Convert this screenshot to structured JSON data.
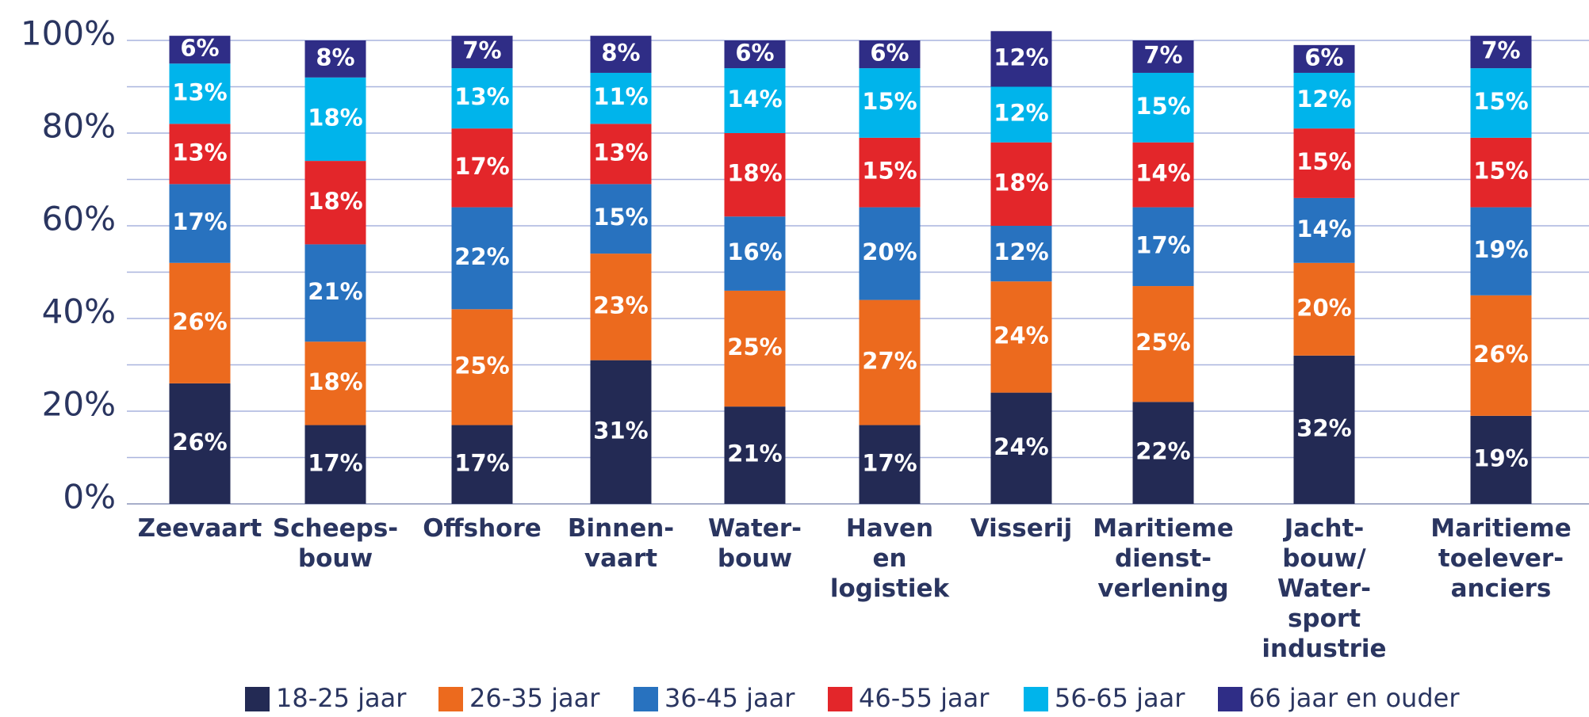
{
  "chart_data": {
    "type": "stacked_bar",
    "categories": [
      [
        "Zeevaart"
      ],
      [
        "Scheeps-",
        "bouw"
      ],
      [
        "Offshore"
      ],
      [
        "Binnen-",
        "vaart"
      ],
      [
        "Water-",
        "bouw"
      ],
      [
        "Haven",
        "en",
        "logistiek"
      ],
      [
        "Visserij"
      ],
      [
        "Maritieme",
        "dienst-",
        "verlening"
      ],
      [
        "Jacht-",
        "bouw/",
        "Water-",
        "sport",
        "industrie"
      ],
      [
        "Maritieme",
        "toelever-",
        "anciers"
      ]
    ],
    "series": [
      {
        "name": "18-25 jaar",
        "color": "#232a54",
        "values": [
          26,
          17,
          17,
          31,
          21,
          17,
          24,
          22,
          32,
          19
        ],
        "value_labels": [
          "26%",
          "17%",
          "17%",
          "31%",
          "21%",
          "17%",
          "24%",
          "22%",
          "32%",
          "19%"
        ]
      },
      {
        "name": "26-35 jaar",
        "color": "#ec6a1e",
        "values": [
          26,
          18,
          25,
          23,
          25,
          27,
          24,
          25,
          20,
          26
        ],
        "value_labels": [
          "26%",
          "18%",
          "25%",
          "23%",
          "25%",
          "27%",
          "24%",
          "25%",
          "20%",
          "26%"
        ]
      },
      {
        "name": "36-45 jaar",
        "color": "#2872bf",
        "values": [
          17,
          21,
          22,
          15,
          16,
          20,
          12,
          17,
          14,
          19
        ],
        "value_labels": [
          "17%",
          "21%",
          "22%",
          "15%",
          "16%",
          "20%",
          "12%",
          "17%",
          "14%",
          "19%"
        ]
      },
      {
        "name": "46-55 jaar",
        "color": "#e3262a",
        "values": [
          13,
          18,
          17,
          13,
          18,
          15,
          18,
          14,
          15,
          15
        ],
        "value_labels": [
          "13%",
          "18%",
          "17%",
          "13%",
          "18%",
          "15%",
          "18%",
          "14%",
          "15%",
          "15%"
        ]
      },
      {
        "name": "56-65 jaar",
        "color": "#00b4eb",
        "values": [
          13,
          18,
          13,
          11,
          14,
          15,
          12,
          15,
          12,
          15
        ],
        "value_labels": [
          "13%",
          "18%",
          "13%",
          "11%",
          "14%",
          "15%",
          "12%",
          "15%",
          "12%",
          "15%"
        ]
      },
      {
        "name": "66 jaar en ouder",
        "color": "#2f2d86",
        "values": [
          6,
          8,
          7,
          8,
          6,
          6,
          12,
          7,
          6,
          7
        ],
        "value_labels": [
          "6%",
          "8%",
          "7%",
          "8%",
          "6%",
          "6%",
          "12%",
          "7%",
          "6%",
          "7%"
        ]
      }
    ],
    "ylim": [
      0,
      100
    ],
    "yticks": [
      {
        "value": 0,
        "label": "0%"
      },
      {
        "value": 20,
        "label": "20%"
      },
      {
        "value": 40,
        "label": "40%"
      },
      {
        "value": 60,
        "label": "60%"
      },
      {
        "value": 80,
        "label": "80%"
      },
      {
        "value": 100,
        "label": "100%"
      }
    ],
    "minor_yticks": [
      10,
      30,
      50,
      70,
      90
    ],
    "grid": true,
    "legend": "bottom"
  }
}
